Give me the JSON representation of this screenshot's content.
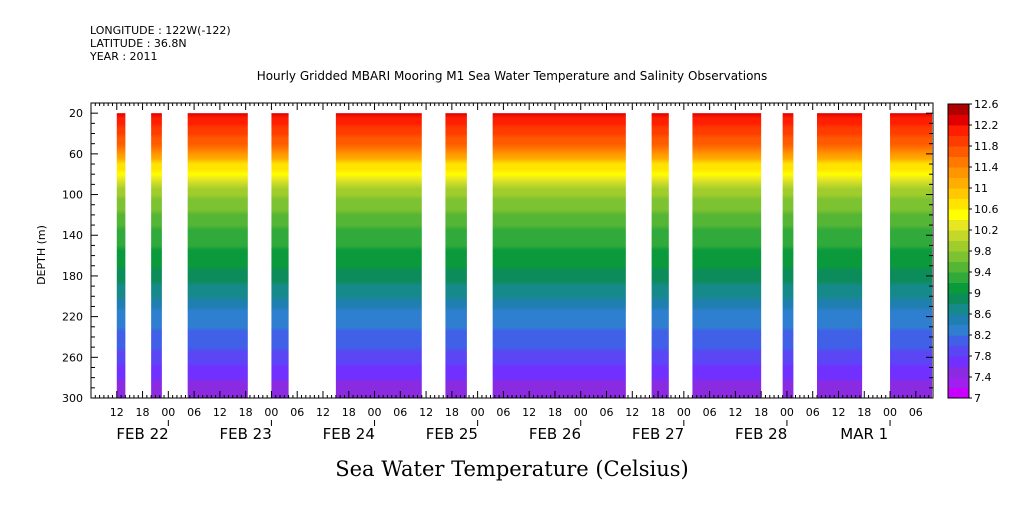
{
  "header": {
    "longitude": "LONGITUDE : 122W(-122)",
    "latitude": "LATITUDE : 36.8N",
    "year": "YEAR : 2011"
  },
  "chart_data": {
    "type": "heatmap",
    "title": "Hourly Gridded MBARI Mooring M1 Sea Water Temperature and Salinity Observations",
    "xlabel": "Sea Water Temperature (Celsius)",
    "ylabel": "DEPTH (m)",
    "ylim": [
      300,
      10
    ],
    "y_ticks": [
      20,
      60,
      100,
      140,
      180,
      220,
      260,
      300
    ],
    "x_range_hours": [
      0,
      196
    ],
    "hour_ticks": [
      "12",
      "18",
      "00",
      "06",
      "12",
      "18",
      "00",
      "06",
      "12",
      "18",
      "00",
      "06",
      "12",
      "18",
      "00",
      "06",
      "12",
      "18",
      "00",
      "06",
      "12",
      "18",
      "00",
      "06",
      "12",
      "18",
      "00",
      "06",
      "12",
      "18",
      "00",
      "06"
    ],
    "date_labels": [
      "FEB 22",
      "FEB 23",
      "FEB 24",
      "FEB 25",
      "FEB 26",
      "FEB 27",
      "FEB 28",
      "MAR  1"
    ],
    "colorbar": {
      "levels": [
        7,
        7.2,
        7.4,
        7.6,
        7.8,
        8,
        8.2,
        8.4,
        8.6,
        8.8,
        9,
        9.2,
        9.4,
        9.6,
        9.8,
        10,
        10.2,
        10.4,
        10.6,
        10.8,
        11,
        11.2,
        11.4,
        11.6,
        11.8,
        12,
        12.2,
        12.4,
        12.6
      ],
      "labels": [
        "12.6",
        "12.2",
        "11.8",
        "11.4",
        "11",
        "10.6",
        "10.2",
        "9.8",
        "9.4",
        "9",
        "8.6",
        "8.2",
        "7.8",
        "7.4",
        "7"
      ],
      "colors": [
        "#c800ff",
        "#a020f0",
        "#8a2be2",
        "#7030ff",
        "#5a46f5",
        "#4060e8",
        "#2f7fd0",
        "#1e7fb0",
        "#168a8a",
        "#0c8c5a",
        "#0a9a3c",
        "#30aa3a",
        "#55b535",
        "#7cc231",
        "#a0cd2c",
        "#c4d82a",
        "#e6e622",
        "#ffff00",
        "#ffe400",
        "#ffc800",
        "#ffad00",
        "#ff9600",
        "#ff7800",
        "#ff5a00",
        "#ff3c00",
        "#ff1e00",
        "#e00000",
        "#b00000"
      ]
    },
    "data_segments_hours": [
      [
        6,
        8
      ],
      [
        14,
        16.5
      ],
      [
        22.5,
        36.5
      ],
      [
        42,
        46
      ],
      [
        57,
        77
      ],
      [
        82.5,
        87.5
      ],
      [
        93.5,
        124.5
      ],
      [
        130.5,
        134.5
      ],
      [
        140,
        156
      ],
      [
        161,
        163.5
      ],
      [
        169,
        179.5
      ],
      [
        186,
        198
      ]
    ],
    "temperature_profile": [
      {
        "depth": 20,
        "temp": 12.3
      },
      {
        "depth": 50,
        "temp": 11.6
      },
      {
        "depth": 75,
        "temp": 10.6
      },
      {
        "depth": 100,
        "temp": 9.8
      },
      {
        "depth": 140,
        "temp": 9.3
      },
      {
        "depth": 180,
        "temp": 8.9
      },
      {
        "depth": 220,
        "temp": 8.3
      },
      {
        "depth": 260,
        "temp": 7.9
      },
      {
        "depth": 300,
        "temp": 7.4
      }
    ]
  }
}
